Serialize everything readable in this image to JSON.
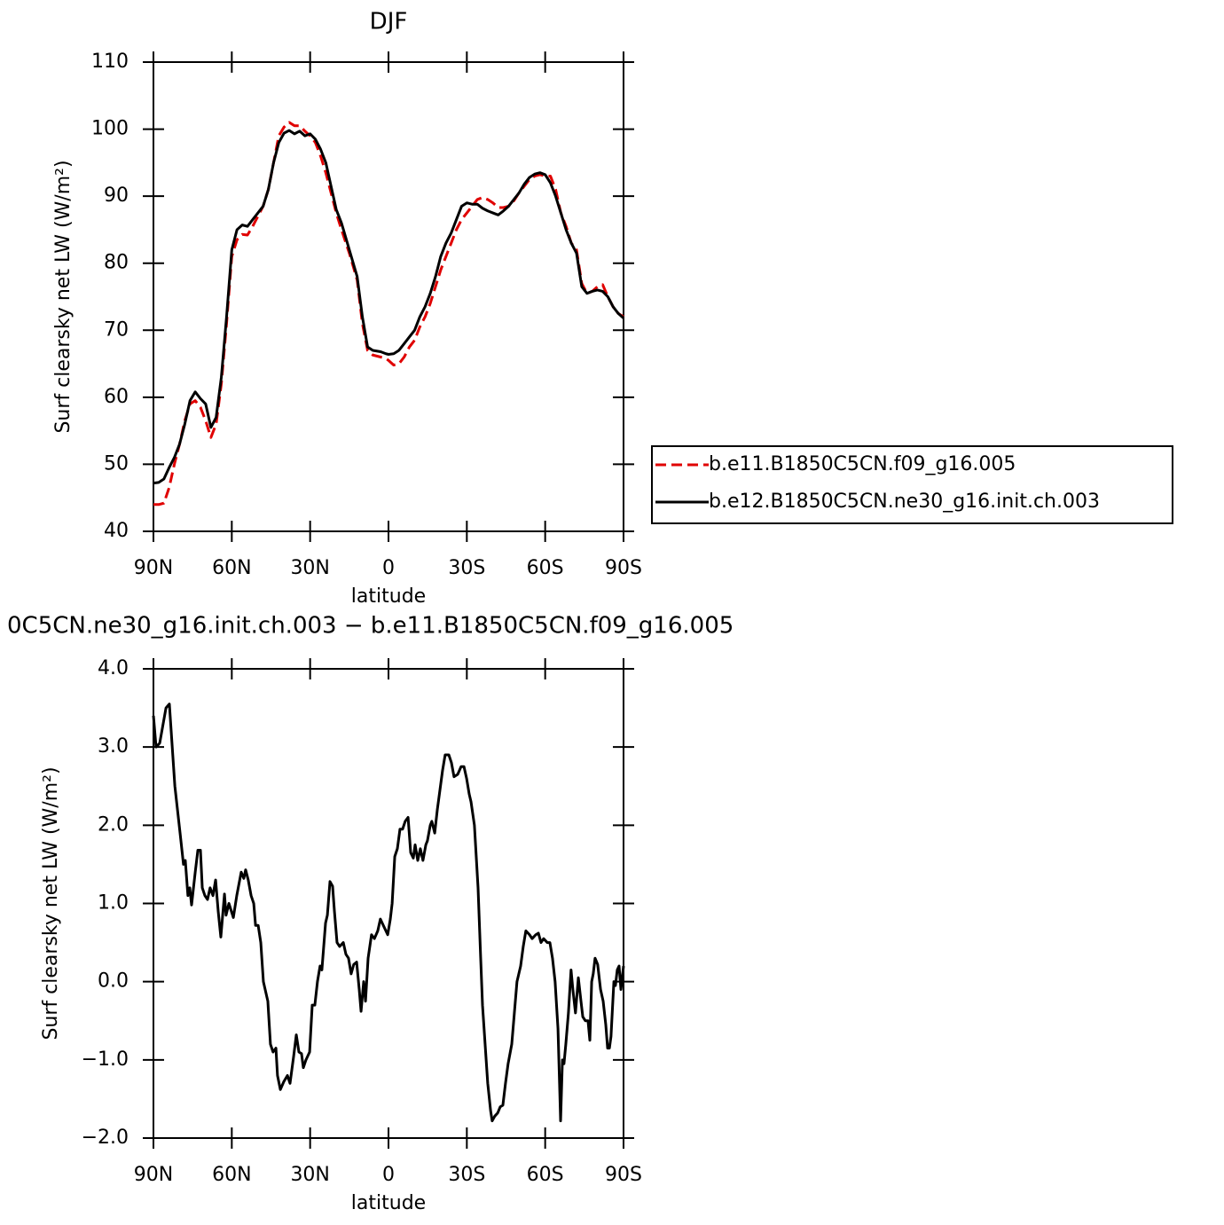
{
  "chart_data": [
    {
      "type": "line",
      "title": "DJF",
      "xlabel": "latitude",
      "ylabel": "Surf clearsky net LW (W/m²)",
      "x": [
        90,
        88,
        86,
        84,
        82,
        80,
        78,
        76,
        74,
        72,
        70,
        68,
        66,
        64,
        62,
        60,
        58,
        56,
        54,
        52,
        50,
        48,
        46,
        44,
        42,
        40,
        38,
        36,
        34,
        32,
        30,
        28,
        26,
        24,
        22,
        20,
        18,
        15,
        12,
        10,
        8,
        6,
        3,
        1,
        0,
        -2,
        -4,
        -6,
        -8,
        -10,
        -12,
        -14,
        -16,
        -18,
        -20,
        -22,
        -24,
        -26,
        -28,
        -30,
        -32,
        -34,
        -36,
        -38,
        -40,
        -42,
        -44,
        -46,
        -48,
        -50,
        -52,
        -54,
        -56,
        -58,
        -60,
        -62,
        -64,
        -66,
        -68,
        -70,
        -72,
        -74,
        -76,
        -78,
        -80,
        -82,
        -84,
        -86,
        -88,
        -90
      ],
      "series": [
        {
          "name": "b.e11.B1850C5CN.f09_g16.005",
          "color": "#e00000",
          "dash": "dashed",
          "values": [
            44,
            44,
            44.2,
            46.5,
            50,
            53,
            56.5,
            59,
            59.5,
            58.5,
            56.5,
            54,
            56,
            62,
            71,
            81,
            83.5,
            84.3,
            84.2,
            85.5,
            87,
            88.5,
            91,
            95,
            99,
            100.3,
            101,
            100.5,
            100.5,
            99.7,
            99,
            98,
            96,
            93.5,
            90.5,
            87.5,
            85,
            81.5,
            77.5,
            71,
            67,
            66.3,
            66,
            65.8,
            65.5,
            64.8,
            65,
            66,
            67.5,
            68.5,
            70.5,
            72,
            74,
            76.5,
            79,
            81,
            83,
            85,
            86.5,
            87.5,
            88.5,
            89.5,
            89.8,
            89.5,
            89,
            88.3,
            88.3,
            88.5,
            89.3,
            90.5,
            91.5,
            92.5,
            93,
            93.2,
            93,
            93,
            91,
            87.5,
            85.5,
            83,
            82,
            77,
            75.5,
            75.8,
            76.5,
            76.8,
            75,
            73.5,
            72.5,
            72
          ]
        },
        {
          "name": "b.e12.B1850C5CN.ne30_g16.init.ch.003",
          "color": "#000000",
          "dash": "solid",
          "values": [
            47.2,
            47.3,
            47.8,
            49.5,
            51,
            53,
            56,
            59.5,
            60.8,
            59.8,
            59,
            55.5,
            57,
            63,
            72,
            82,
            85,
            85.7,
            85.5,
            86.5,
            87.5,
            88.5,
            91,
            95,
            98,
            99.4,
            99.8,
            99.3,
            99.7,
            99,
            99.3,
            98.5,
            97,
            95,
            91.5,
            88,
            86,
            82,
            78,
            72,
            67.5,
            67,
            66.8,
            66.5,
            66.4,
            66.5,
            67,
            68,
            69,
            70,
            72,
            73.5,
            75.5,
            78,
            81,
            83,
            84.5,
            86.5,
            88.5,
            89,
            88.8,
            88.8,
            88.2,
            87.8,
            87.5,
            87.2,
            87.8,
            88.5,
            89.5,
            90.5,
            91.8,
            92.8,
            93.3,
            93.5,
            93.2,
            92,
            90,
            87.5,
            85,
            83,
            81.5,
            76.5,
            75.5,
            75.8,
            76,
            75.8,
            75,
            73.5,
            72.5,
            71.8
          ]
        }
      ],
      "xlim": [
        90,
        -90
      ],
      "xticks": [
        {
          "value": 90,
          "label": "90N"
        },
        {
          "value": 60,
          "label": "60N"
        },
        {
          "value": 30,
          "label": "30N"
        },
        {
          "value": 0,
          "label": "0"
        },
        {
          "value": -30,
          "label": "30S"
        },
        {
          "value": -60,
          "label": "60S"
        },
        {
          "value": -90,
          "label": "90S"
        }
      ],
      "ylim": [
        40,
        110
      ],
      "yticks": [
        40,
        50,
        60,
        70,
        80,
        90,
        100,
        110
      ],
      "legend": "right"
    },
    {
      "type": "line",
      "title": "0C5CN.ne30_g16.init.ch.003 − b.e11.B1850C5CN.f09_g16.005",
      "xlabel": "latitude",
      "ylabel": "Surf clearsky net LW (W/m²)",
      "x": [
        90,
        89,
        87.6,
        85.2,
        83.9,
        81.8,
        79.8,
        78.5,
        77.8,
        76.8,
        76.1,
        75.4,
        74,
        73,
        72,
        71.3,
        70.3,
        69.3,
        68.3,
        67.2,
        66.2,
        65.2,
        64.2,
        62.8,
        62.2,
        61.1,
        59.4,
        58.1,
        56.4,
        55.4,
        54.7,
        53.7,
        52.6,
        51.6,
        50.9,
        49.9,
        48.9,
        47.9,
        46.2,
        45.2,
        44.2,
        43.1,
        42.5,
        41.4,
        40.1,
        38.7,
        37.7,
        36.3,
        35.3,
        34.3,
        33.3,
        32.6,
        31.6,
        30.2,
        29.2,
        28.2,
        27.2,
        26.2,
        25.5,
        24.1,
        23.4,
        22.4,
        21.4,
        20.7,
        19.7,
        18.7,
        17.3,
        16.3,
        15.3,
        14.3,
        13.3,
        12.2,
        11.2,
        10.5,
        9.5,
        8.8,
        7.8,
        6.5,
        5.4,
        4.1,
        3.1,
        1.7,
        0.3,
        -0.7,
        -1.4,
        -2.4,
        -3.4,
        -4.4,
        -5.4,
        -6.4,
        -7.5,
        -8.5,
        -9.5,
        -10.2,
        -11.2,
        -12.2,
        -13.2,
        -14.3,
        -14.9,
        -16,
        -16.6,
        -17.7,
        -18.7,
        -19.7,
        -20.7,
        -21.7,
        -23.1,
        -24.1,
        -25.1,
        -26.5,
        -27.8,
        -28.9,
        -29.9,
        -30.9,
        -31.6,
        -32.9,
        -34.3,
        -35.3,
        -36,
        -37,
        -38,
        -39.1,
        -39.7,
        -40.7,
        -41.8,
        -42.8,
        -43.8,
        -44.8,
        -45.8,
        -47.2,
        -48.2,
        -49.2,
        -50.6,
        -51.6,
        -52.6,
        -54,
        -55,
        -56.4,
        -57.4,
        -58.4,
        -59.4,
        -60.8,
        -61.8,
        -62.8,
        -63.8,
        -64.9,
        -65.5,
        -65.9,
        -66.6,
        -67.2,
        -67.9,
        -68.9,
        -69.9,
        -70.6,
        -71.6,
        -72.7,
        -73.7,
        -74.4,
        -75.4,
        -76.4,
        -77.1,
        -77.8,
        -78.4,
        -79.1,
        -80.1,
        -81.2,
        -82.2,
        -83.2,
        -83.9,
        -84.6,
        -85.2,
        -86.3,
        -86.9,
        -87.6,
        -88.3,
        -89,
        -90
      ],
      "values": [
        3.4,
        3.0,
        3.05,
        3.5,
        3.55,
        2.5,
        1.9,
        1.5,
        1.55,
        1.1,
        1.2,
        0.98,
        1.4,
        1.68,
        1.68,
        1.2,
        1.1,
        1.05,
        1.2,
        1.1,
        1.3,
        0.9,
        0.57,
        1.12,
        0.85,
        1.0,
        0.82,
        1.1,
        1.4,
        1.32,
        1.43,
        1.3,
        1.1,
        1.0,
        0.72,
        0.72,
        0.5,
        0.0,
        -0.25,
        -0.8,
        -0.9,
        -0.85,
        -1.2,
        -1.38,
        -1.28,
        -1.2,
        -1.3,
        -0.95,
        -0.68,
        -0.9,
        -0.92,
        -1.1,
        -1.0,
        -0.9,
        -0.3,
        -0.3,
        0.0,
        0.2,
        0.15,
        0.75,
        0.85,
        1.28,
        1.22,
        0.9,
        0.5,
        0.45,
        0.5,
        0.35,
        0.3,
        0.1,
        0.22,
        0.25,
        -0.1,
        -0.38,
        0.0,
        -0.25,
        0.3,
        0.6,
        0.55,
        0.65,
        0.8,
        0.7,
        0.6,
        0.8,
        1.0,
        1.6,
        1.7,
        1.95,
        1.95,
        2.05,
        2.1,
        1.65,
        1.58,
        1.75,
        1.55,
        1.7,
        1.55,
        1.75,
        1.8,
        2.0,
        2.05,
        1.9,
        2.2,
        2.45,
        2.7,
        2.9,
        2.9,
        2.8,
        2.62,
        2.65,
        2.75,
        2.75,
        2.6,
        2.4,
        2.3,
        2.0,
        1.2,
        0.3,
        -0.3,
        -0.8,
        -1.3,
        -1.65,
        -1.78,
        -1.72,
        -1.68,
        -1.6,
        -1.58,
        -1.3,
        -1.05,
        -0.8,
        -0.4,
        0.0,
        0.2,
        0.45,
        0.65,
        0.6,
        0.55,
        0.6,
        0.62,
        0.5,
        0.55,
        0.5,
        0.5,
        0.3,
        0.0,
        -0.6,
        -1.3,
        -1.78,
        -1.0,
        -1.05,
        -0.8,
        -0.4,
        0.15,
        -0.1,
        -0.4,
        0.05,
        -0.25,
        -0.45,
        -0.5,
        -0.5,
        -0.75,
        0.0,
        0.1,
        0.3,
        0.22,
        -0.1,
        -0.25,
        -0.55,
        -0.85,
        -0.85,
        -0.7,
        0.0,
        -0.05,
        0.15,
        0.2,
        -0.1,
        0.2
      ],
      "color": "#000000",
      "xlim": [
        90,
        -90
      ],
      "xticks": [
        {
          "value": 90,
          "label": "90N"
        },
        {
          "value": 60,
          "label": "60N"
        },
        {
          "value": 30,
          "label": "30N"
        },
        {
          "value": 0,
          "label": "0"
        },
        {
          "value": -30,
          "label": "30S"
        },
        {
          "value": -60,
          "label": "60S"
        },
        {
          "value": -90,
          "label": "90S"
        }
      ],
      "ylim": [
        -2,
        4
      ],
      "yticks": [
        {
          "value": -2,
          "label": "−2.0"
        },
        {
          "value": -1,
          "label": "−1.0"
        },
        {
          "value": 0,
          "label": "0.0"
        },
        {
          "value": 1,
          "label": "1.0"
        },
        {
          "value": 2,
          "label": "2.0"
        },
        {
          "value": 3,
          "label": "3.0"
        },
        {
          "value": 4,
          "label": "4.0"
        }
      ]
    }
  ]
}
